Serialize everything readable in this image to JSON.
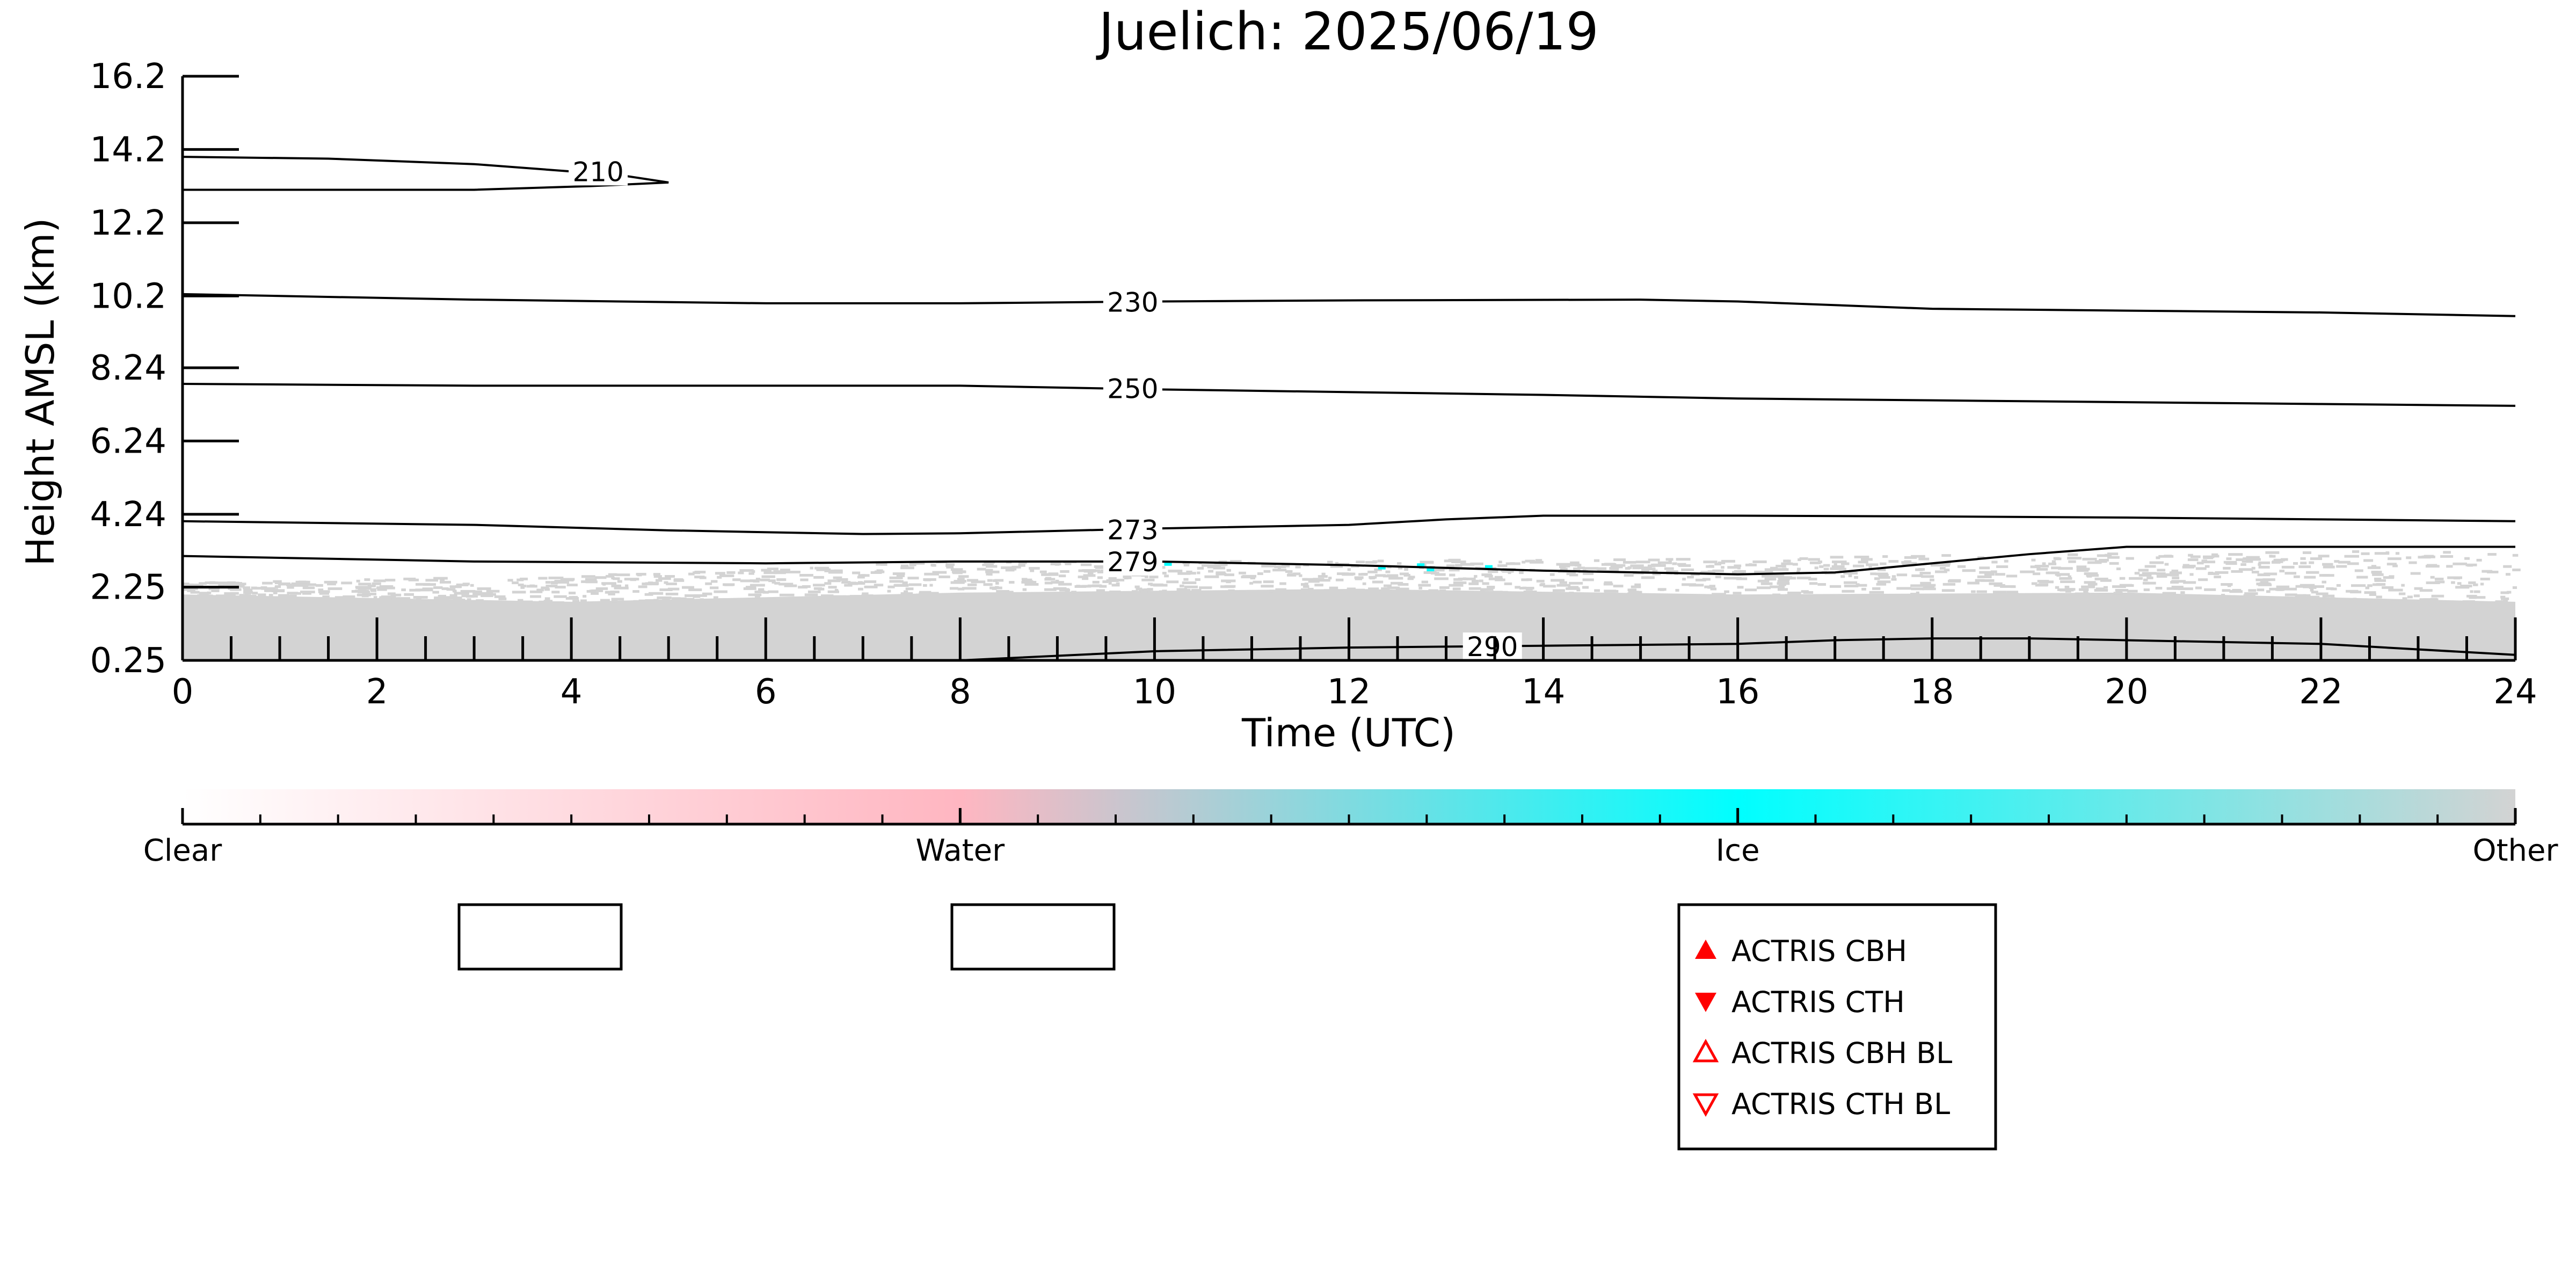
{
  "chart_data": {
    "type": "heatmap",
    "title": "Juelich: 2025/06/19",
    "xlabel": "Time (UTC)",
    "ylabel": "Height AMSL (km)",
    "xlim": [
      0,
      24
    ],
    "ylim": [
      0.25,
      16.2
    ],
    "x_ticks": [
      "0",
      "2",
      "4",
      "6",
      "8",
      "10",
      "12",
      "14",
      "16",
      "18",
      "20",
      "22",
      "24"
    ],
    "y_ticks": [
      "0.25",
      "2.25",
      "4.24",
      "6.24",
      "8.24",
      "10.2",
      "12.2",
      "14.2",
      "16.2"
    ],
    "y_tick_values": [
      0.25,
      2.25,
      4.24,
      6.24,
      8.24,
      10.2,
      12.2,
      14.2,
      16.2
    ],
    "grid": false,
    "colorbar": {
      "labels": [
        "Clear",
        "Water",
        "Ice",
        "Other"
      ],
      "colors": [
        "#ffffff",
        "#ffb6c1",
        "#00ffff",
        "#d3d3d3"
      ]
    },
    "classification_fill": {
      "description_color": "#d3d3d3",
      "solid_top_km": [
        [
          0,
          2.05
        ],
        [
          4,
          1.85
        ],
        [
          8,
          2.1
        ],
        [
          12,
          2.2
        ],
        [
          16,
          2.05
        ],
        [
          20,
          2.1
        ],
        [
          24,
          1.85
        ]
      ],
      "scatter_top_km": [
        [
          0,
          2.4
        ],
        [
          4,
          2.6
        ],
        [
          8,
          3.0
        ],
        [
          12,
          3.0
        ],
        [
          16,
          3.1
        ],
        [
          20,
          3.2
        ],
        [
          24,
          3.3
        ]
      ]
    },
    "contours": [
      {
        "label": "210",
        "label_x": 4.0,
        "points": [
          [
            0,
            14.0
          ],
          [
            1.5,
            13.95
          ],
          [
            3,
            13.8
          ],
          [
            4.5,
            13.5
          ],
          [
            5,
            13.3
          ],
          [
            4.2,
            13.2
          ],
          [
            3,
            13.1
          ],
          [
            1.5,
            13.1
          ],
          [
            0,
            13.1
          ]
        ]
      },
      {
        "label": "230",
        "label_x": 9.5,
        "points": [
          [
            0,
            10.25
          ],
          [
            3,
            10.1
          ],
          [
            6,
            10.0
          ],
          [
            8,
            10.0
          ],
          [
            10,
            10.05
          ],
          [
            12,
            10.08
          ],
          [
            15,
            10.1
          ],
          [
            16,
            10.05
          ],
          [
            18,
            9.85
          ],
          [
            20,
            9.8
          ],
          [
            22,
            9.75
          ],
          [
            24,
            9.65
          ]
        ]
      },
      {
        "label": "250",
        "label_x": 9.5,
        "points": [
          [
            0,
            7.8
          ],
          [
            3,
            7.75
          ],
          [
            6,
            7.75
          ],
          [
            8,
            7.75
          ],
          [
            10,
            7.65
          ],
          [
            14,
            7.5
          ],
          [
            16,
            7.4
          ],
          [
            18,
            7.35
          ],
          [
            20,
            7.3
          ],
          [
            22,
            7.25
          ],
          [
            24,
            7.2
          ]
        ]
      },
      {
        "label": "273",
        "label_x": 9.5,
        "points": [
          [
            0,
            4.05
          ],
          [
            3,
            3.95
          ],
          [
            5,
            3.8
          ],
          [
            7,
            3.7
          ],
          [
            8,
            3.72
          ],
          [
            10,
            3.85
          ],
          [
            12,
            3.95
          ],
          [
            13,
            4.1
          ],
          [
            14,
            4.2
          ],
          [
            16,
            4.2
          ],
          [
            18,
            4.18
          ],
          [
            20,
            4.15
          ],
          [
            22,
            4.1
          ],
          [
            24,
            4.05
          ]
        ]
      },
      {
        "label": "279",
        "label_x": 9.5,
        "points": [
          [
            0,
            3.1
          ],
          [
            3,
            2.95
          ],
          [
            6,
            2.9
          ],
          [
            8,
            2.95
          ],
          [
            10,
            2.95
          ],
          [
            12,
            2.85
          ],
          [
            14,
            2.7
          ],
          [
            16,
            2.6
          ],
          [
            17,
            2.65
          ],
          [
            18,
            2.9
          ],
          [
            19,
            3.15
          ],
          [
            20,
            3.35
          ],
          [
            22,
            3.35
          ],
          [
            24,
            3.35
          ]
        ]
      },
      {
        "label": "290",
        "label_x": 13.2,
        "points": [
          [
            8,
            0.25
          ],
          [
            10,
            0.5
          ],
          [
            12,
            0.6
          ],
          [
            14,
            0.65
          ],
          [
            16,
            0.7
          ],
          [
            17,
            0.8
          ],
          [
            18,
            0.85
          ],
          [
            19,
            0.85
          ],
          [
            20,
            0.8
          ],
          [
            22,
            0.7
          ],
          [
            24,
            0.4
          ]
        ]
      }
    ]
  },
  "legend": {
    "items": [
      {
        "label": "ACTRIS CBH",
        "marker": "filled-up-triangle",
        "color": "#ff0000"
      },
      {
        "label": "ACTRIS CTH",
        "marker": "filled-down-triangle",
        "color": "#ff0000"
      },
      {
        "label": "ACTRIS CBH BL",
        "marker": "open-up-triangle",
        "color": "#ff0000"
      },
      {
        "label": "ACTRIS CTH BL",
        "marker": "open-down-triangle",
        "color": "#ff0000"
      }
    ]
  }
}
